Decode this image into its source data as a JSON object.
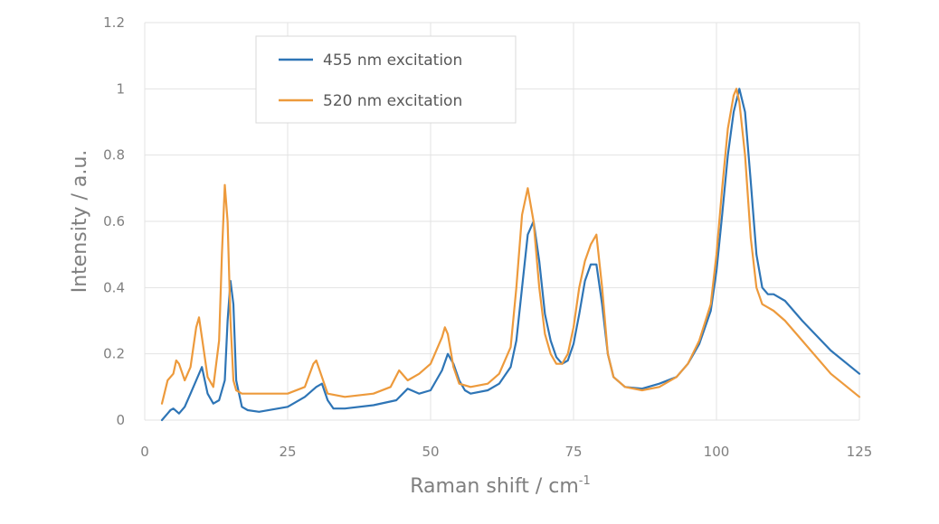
{
  "chart_data": {
    "type": "line",
    "xlabel": "Raman shift / cm",
    "xlabel_sup": "-1",
    "ylabel": "Intensity / a.u.",
    "xlim": [
      0,
      125
    ],
    "ylim": [
      0,
      1.2
    ],
    "xticks": [
      0,
      25,
      50,
      75,
      100,
      125
    ],
    "xtick_labels": [
      "0",
      "25",
      "50",
      "75",
      "100",
      "125"
    ],
    "yticks": [
      0,
      0.2,
      0.4,
      0.6,
      0.8,
      1,
      1.2
    ],
    "ytick_labels": [
      "0",
      "0.2",
      "0.4",
      "0.6",
      "0.8",
      "1",
      "1.2"
    ],
    "grid": true,
    "legend_position": "top-left",
    "series": [
      {
        "name": "455 nm excitation",
        "color": "#2e75b6",
        "x": [
          3.0,
          4.0,
          4.5,
          5.0,
          6.0,
          7.0,
          8.0,
          9.0,
          10.0,
          11.0,
          12.0,
          13.0,
          14.0,
          14.5,
          15.0,
          15.5,
          16.0,
          17.0,
          18.0,
          20.0,
          25.0,
          28.0,
          30.0,
          31.0,
          32.0,
          33.0,
          35.0,
          40.0,
          44.0,
          46.0,
          48.0,
          50.0,
          52.0,
          53.0,
          54.0,
          55.0,
          56.0,
          57.0,
          60.0,
          62.0,
          64.0,
          65.0,
          66.0,
          67.0,
          68.0,
          69.0,
          70.0,
          71.0,
          72.0,
          73.0,
          74.0,
          75.0,
          76.0,
          77.0,
          78.0,
          79.0,
          80.0,
          81.0,
          82.0,
          84.0,
          87.0,
          90.0,
          93.0,
          95.0,
          97.0,
          99.0,
          100.0,
          101.0,
          102.0,
          103.0,
          104.0,
          105.0,
          106.0,
          107.0,
          108.0,
          109.0,
          110.0,
          112.0,
          115.0,
          120.0,
          125.0
        ],
        "y": [
          0.0,
          0.02,
          0.03,
          0.035,
          0.02,
          0.04,
          0.08,
          0.12,
          0.16,
          0.08,
          0.05,
          0.06,
          0.12,
          0.3,
          0.42,
          0.35,
          0.12,
          0.04,
          0.03,
          0.025,
          0.04,
          0.07,
          0.1,
          0.11,
          0.06,
          0.035,
          0.035,
          0.045,
          0.06,
          0.095,
          0.08,
          0.09,
          0.15,
          0.2,
          0.17,
          0.12,
          0.09,
          0.08,
          0.09,
          0.11,
          0.16,
          0.24,
          0.4,
          0.56,
          0.6,
          0.48,
          0.32,
          0.24,
          0.19,
          0.17,
          0.18,
          0.23,
          0.32,
          0.42,
          0.47,
          0.47,
          0.35,
          0.2,
          0.13,
          0.1,
          0.095,
          0.11,
          0.13,
          0.17,
          0.23,
          0.33,
          0.45,
          0.62,
          0.8,
          0.93,
          1.0,
          0.93,
          0.72,
          0.5,
          0.4,
          0.38,
          0.38,
          0.36,
          0.3,
          0.21,
          0.14
        ]
      },
      {
        "name": "520 nm excitation",
        "color": "#ed9a3c",
        "x": [
          3.0,
          4.0,
          5.0,
          5.5,
          6.0,
          7.0,
          8.0,
          9.0,
          9.5,
          10.0,
          11.0,
          12.0,
          13.0,
          13.5,
          14.0,
          14.5,
          15.0,
          15.5,
          16.0,
          17.0,
          20.0,
          25.0,
          28.0,
          29.5,
          30.0,
          31.0,
          32.0,
          35.0,
          40.0,
          43.0,
          44.5,
          46.0,
          48.0,
          50.0,
          52.0,
          52.5,
          53.0,
          54.0,
          55.0,
          57.0,
          60.0,
          62.0,
          64.0,
          65.0,
          66.0,
          67.0,
          68.0,
          69.0,
          70.0,
          71.0,
          72.0,
          73.0,
          74.0,
          75.0,
          76.0,
          77.0,
          78.0,
          79.0,
          80.0,
          81.0,
          82.0,
          84.0,
          87.0,
          90.0,
          93.0,
          95.0,
          97.0,
          99.0,
          100.0,
          101.0,
          102.0,
          103.0,
          103.5,
          104.0,
          105.0,
          106.0,
          107.0,
          108.0,
          109.0,
          110.0,
          112.0,
          115.0,
          120.0,
          125.0
        ],
        "y": [
          0.05,
          0.12,
          0.14,
          0.18,
          0.17,
          0.12,
          0.16,
          0.28,
          0.31,
          0.25,
          0.13,
          0.1,
          0.24,
          0.5,
          0.71,
          0.6,
          0.3,
          0.12,
          0.09,
          0.08,
          0.08,
          0.08,
          0.1,
          0.17,
          0.18,
          0.13,
          0.08,
          0.07,
          0.08,
          0.1,
          0.15,
          0.12,
          0.14,
          0.17,
          0.25,
          0.28,
          0.26,
          0.16,
          0.11,
          0.1,
          0.11,
          0.14,
          0.22,
          0.4,
          0.62,
          0.7,
          0.6,
          0.4,
          0.26,
          0.2,
          0.17,
          0.17,
          0.2,
          0.28,
          0.4,
          0.48,
          0.53,
          0.56,
          0.4,
          0.2,
          0.13,
          0.1,
          0.09,
          0.1,
          0.13,
          0.17,
          0.24,
          0.35,
          0.5,
          0.7,
          0.88,
          0.98,
          1.0,
          0.96,
          0.8,
          0.55,
          0.4,
          0.35,
          0.34,
          0.33,
          0.3,
          0.24,
          0.14,
          0.07
        ]
      }
    ]
  }
}
